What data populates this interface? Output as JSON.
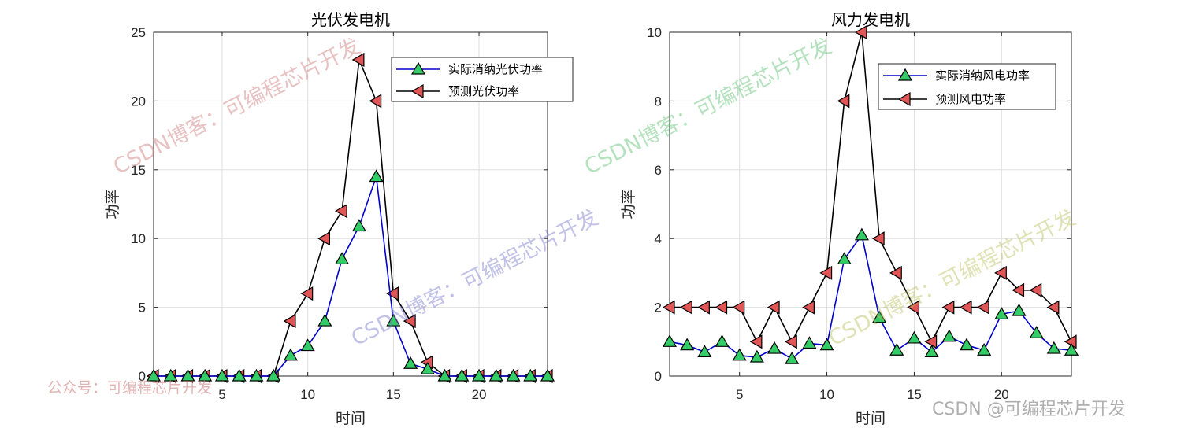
{
  "chart_data": [
    {
      "type": "line",
      "title": "光伏发电机",
      "xlabel": "时间",
      "ylabel": "功率",
      "xlim": [
        1,
        24
      ],
      "ylim": [
        0,
        25
      ],
      "xticks": [
        5,
        10,
        15,
        20
      ],
      "yticks": [
        0,
        5,
        10,
        15,
        20,
        25
      ],
      "grid": true,
      "legend_position": "top-right",
      "x": [
        1,
        2,
        3,
        4,
        5,
        6,
        7,
        8,
        9,
        10,
        11,
        12,
        13,
        14,
        15,
        16,
        17,
        18,
        19,
        20,
        21,
        22,
        23,
        24
      ],
      "series": [
        {
          "name": "实际消纳光伏功率",
          "color": "#0000cc",
          "marker": "triangle-up",
          "marker_color": "#33cc66",
          "values": [
            0,
            0,
            0,
            0,
            0,
            0,
            0,
            0,
            1.5,
            2.2,
            4,
            8.5,
            10.9,
            14.5,
            4,
            0.9,
            0.5,
            0,
            0,
            0,
            0,
            0,
            0,
            0
          ]
        },
        {
          "name": "预测光伏功率",
          "color": "#000000",
          "marker": "triangle-left",
          "marker_color": "#e05555",
          "values": [
            0,
            0,
            0,
            0,
            0,
            0,
            0,
            0,
            4,
            6,
            10,
            12,
            23,
            20,
            6,
            4,
            1,
            0,
            0,
            0,
            0,
            0,
            0,
            0
          ]
        }
      ]
    },
    {
      "type": "line",
      "title": "风力发电机",
      "xlabel": "时间",
      "ylabel": "功率",
      "xlim": [
        1,
        24
      ],
      "ylim": [
        0,
        10
      ],
      "xticks": [
        5,
        10,
        15,
        20
      ],
      "yticks": [
        0,
        2,
        4,
        6,
        8,
        10
      ],
      "grid": true,
      "legend_position": "top-right",
      "x": [
        1,
        2,
        3,
        4,
        5,
        6,
        7,
        8,
        9,
        10,
        11,
        12,
        13,
        14,
        15,
        16,
        17,
        18,
        19,
        20,
        21,
        22,
        23,
        24
      ],
      "series": [
        {
          "name": "实际消纳风电功率",
          "color": "#0000cc",
          "marker": "triangle-up",
          "marker_color": "#33cc66",
          "values": [
            1.0,
            0.9,
            0.7,
            1.0,
            0.6,
            0.55,
            0.8,
            0.5,
            0.95,
            0.9,
            3.4,
            4.1,
            1.7,
            0.75,
            1.1,
            0.7,
            1.15,
            0.9,
            0.75,
            1.8,
            1.9,
            1.25,
            0.8,
            0.75
          ]
        },
        {
          "name": "预测风电功率",
          "color": "#000000",
          "marker": "triangle-left",
          "marker_color": "#e05555",
          "values": [
            2,
            2,
            2,
            2,
            2,
            1,
            2,
            1,
            2,
            3,
            8,
            10,
            4,
            3,
            2,
            1,
            2,
            2,
            2,
            3,
            2.5,
            2.5,
            2,
            1
          ]
        }
      ]
    }
  ],
  "watermarks": [
    "CSDN博客：可编程芯片开发",
    "CSDN博客：可编程芯片开发",
    "CSDN博客：可编程芯片开发",
    "CSDN博客：可编程芯片开发",
    "公众号：可编程芯片开发",
    "CSDN @可编程芯片开发"
  ]
}
